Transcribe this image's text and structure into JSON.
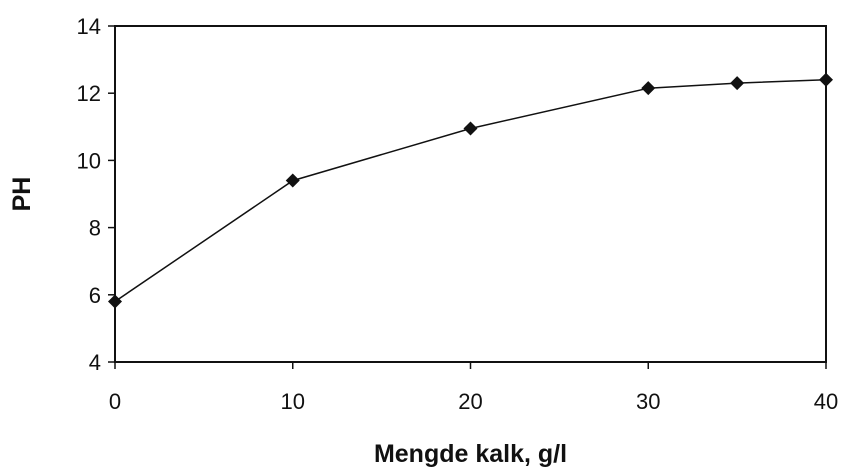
{
  "chart_data": {
    "type": "line",
    "title": "",
    "xlabel": "Mengde kalk, g/l",
    "ylabel": "PH",
    "xlim": [
      0,
      40
    ],
    "ylim": [
      4,
      14
    ],
    "x_ticks": [
      0,
      10,
      20,
      30,
      40
    ],
    "y_ticks": [
      4,
      6,
      8,
      10,
      12,
      14
    ],
    "grid": false,
    "legend": "none",
    "marker": "diamond",
    "line_color": "#111111",
    "series": [
      {
        "x": [
          0,
          10,
          20,
          30,
          35,
          40
        ],
        "y": [
          5.8,
          9.4,
          10.95,
          12.15,
          12.3,
          12.4
        ]
      }
    ]
  }
}
